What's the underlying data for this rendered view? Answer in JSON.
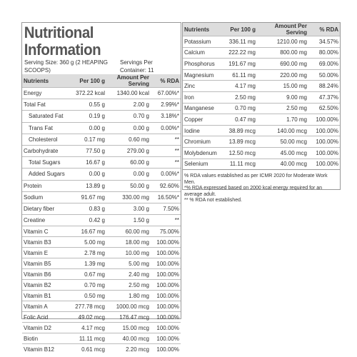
{
  "left": {
    "title": "Nutritional Information",
    "serving_size": "Serving Size: 360 g (2 HEAPING SCOOPS)",
    "servings_per_container": "Servings Per Container: 11",
    "header": [
      "Nutrients",
      "Per 100 g",
      "Amount Per Serving",
      "% RDA"
    ],
    "rows": [
      [
        "Energy",
        "372.22 kcal",
        "1340.00 kcal",
        "67.00%*"
      ],
      [
        "Total Fat",
        "0.55 g",
        "2.00 g",
        "2.99%*"
      ],
      [
        "Saturated Fat",
        "0.19 g",
        "0.70 g",
        "3.18%*"
      ],
      [
        "Trans Fat",
        "0.00 g",
        "0.00 g",
        "0.00%*"
      ],
      [
        "Cholesterol",
        "0.17 mg",
        "0.60 mg",
        "**"
      ],
      [
        "Carbohydrate",
        "77.50 g",
        "279.00 g",
        "**"
      ],
      [
        "Total Sugars",
        "16.67 g",
        "60.00 g",
        "**"
      ],
      [
        "Added Sugars",
        "0.00 g",
        "0.00 g",
        "0.00%*"
      ],
      [
        "Protein",
        "13.89 g",
        "50.00 g",
        "92.60%"
      ],
      [
        "Sodium",
        "91.67 mg",
        "330.00 mg",
        "16.50%*"
      ],
      [
        "Dietary fiber",
        "0.83 g",
        "3.00 g",
        "7.50%"
      ],
      [
        "Creatine",
        "0.42 g",
        "1.50 g",
        "**"
      ],
      [
        "Vitamin C",
        "16.67 mg",
        "60.00 mg",
        "75.00%"
      ],
      [
        "Vitamin B3",
        "5.00 mg",
        "18.00 mg",
        "100.00%"
      ],
      [
        "Vitamin E",
        "2.78 mg",
        "10.00 mg",
        "100.00%"
      ],
      [
        "Vitamin B5",
        "1.39 mg",
        "5.00 mg",
        "100.00%"
      ],
      [
        "Vitamin B6",
        "0.67 mg",
        "2.40 mg",
        "100.00%"
      ],
      [
        "Vitamin B2",
        "0.70 mg",
        "2.50 mg",
        "100.00%"
      ],
      [
        "Vitamin B1",
        "0.50 mg",
        "1.80 mg",
        "100.00%"
      ],
      [
        "Vitamin A",
        "277.78 mcg",
        "1000.00 mcg",
        "100.00%"
      ],
      [
        "Folic Acid",
        "49.02 mcg",
        "176.47 mcg",
        "100.00%"
      ],
      [
        "Vitamin D2",
        "4.17 mcg",
        "15.00 mcg",
        "100.00%"
      ],
      [
        "Biotin",
        "11.11 mcg",
        "40.00 mcg",
        "100.00%"
      ],
      [
        "Vitamin B12",
        "0.61 mcg",
        "2.20 mcg",
        "100.00%"
      ]
    ]
  },
  "right": {
    "header": [
      "Nutrients",
      "Per 100 g",
      "Amount Per Serving",
      "% RDA"
    ],
    "rows": [
      [
        "Potassium",
        "336.11 mg",
        "1210.00 mg",
        "34.57%"
      ],
      [
        "Calcium",
        "222.22 mg",
        "800.00 mg",
        "80.00%"
      ],
      [
        "Phosphorus",
        "191.67 mg",
        "690.00 mg",
        "69.00%"
      ],
      [
        "Magnesium",
        "61.11 mg",
        "220.00 mg",
        "50.00%"
      ],
      [
        "Zinc",
        "4.17 mg",
        "15.00 mg",
        "88.24%"
      ],
      [
        "Iron",
        "2.50 mg",
        "9.00 mg",
        "47.37%"
      ],
      [
        "Manganese",
        "0.70 mg",
        "2.50 mg",
        "62.50%"
      ],
      [
        "Copper",
        "0.47 mg",
        "1.70 mg",
        "100.00%"
      ],
      [
        "Iodine",
        "38.89 mcg",
        "140.00 mcg",
        "100.00%"
      ],
      [
        "Chromium",
        "13.89 mcg",
        "50.00 mcg",
        "100.00%"
      ],
      [
        "Molybdenum",
        "12.50 mcg",
        "45.00 mcg",
        "100.00%"
      ],
      [
        "Selenium",
        "11.11 mcg",
        "40.00 mcg",
        "100.00%"
      ]
    ],
    "footnotes": [
      "% RDA values established as per ICMR 2020 for Moderate Work Men.",
      "*% RDA expressed based on 2000 kcal energy required for an average adult.",
      "** % RDA not established."
    ]
  }
}
